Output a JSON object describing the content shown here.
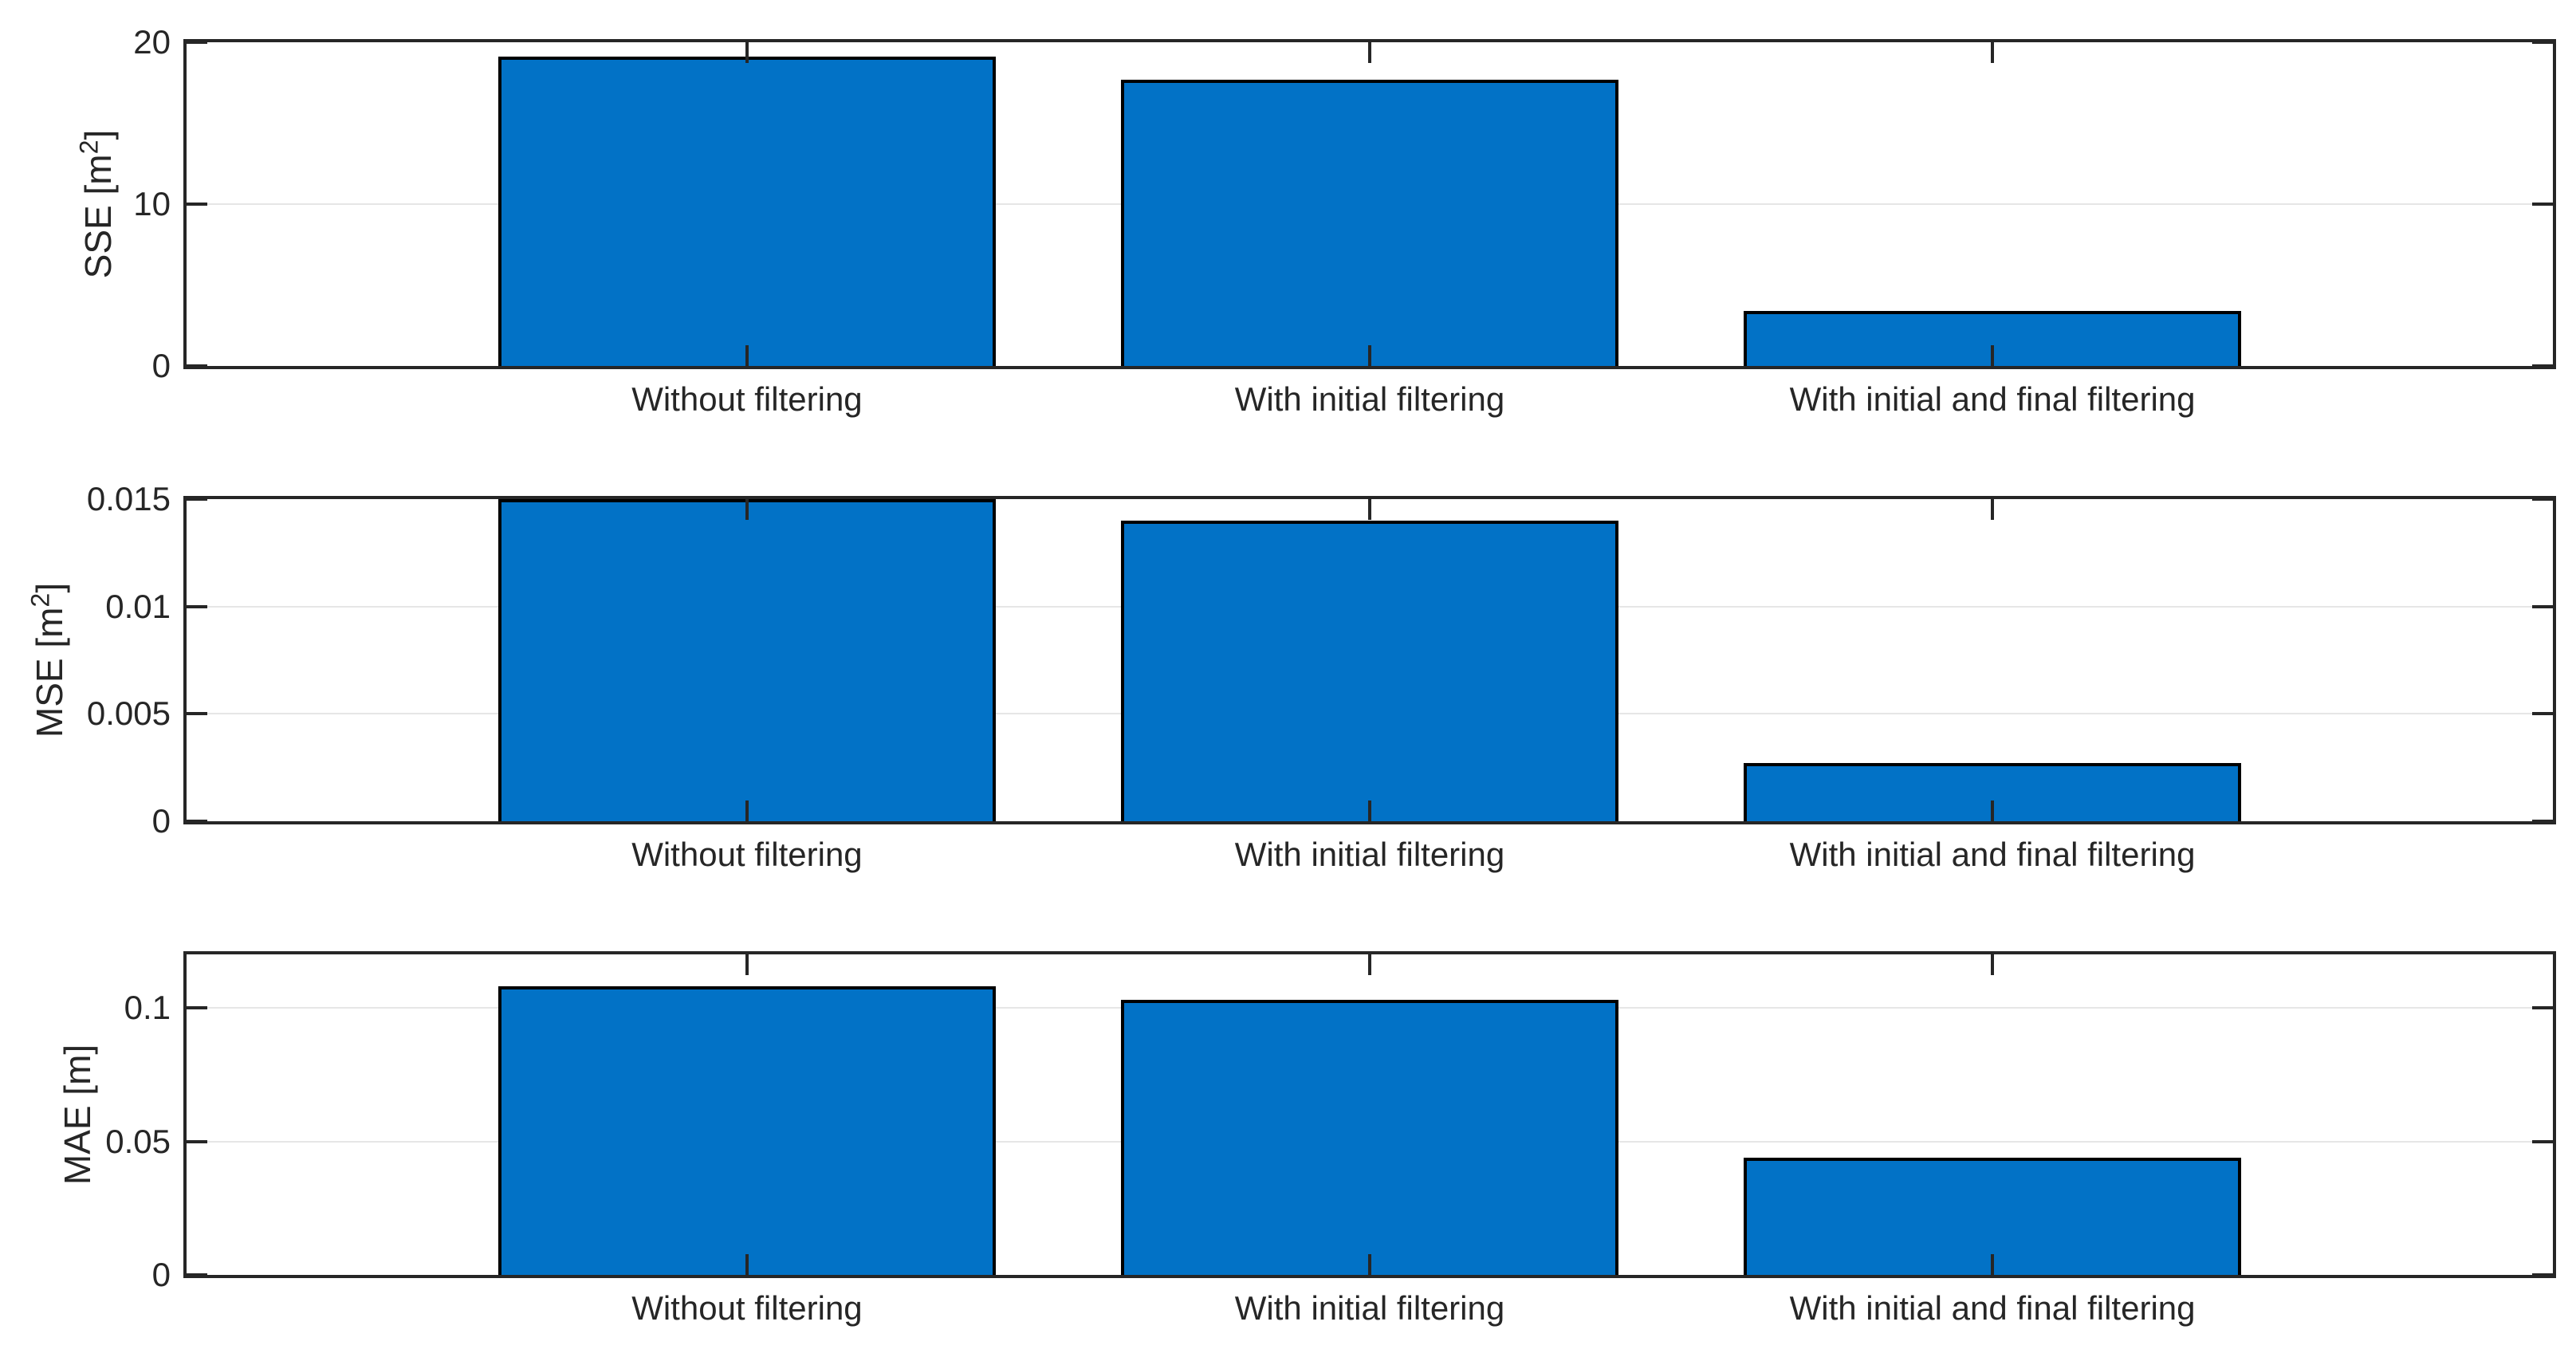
{
  "figure": {
    "background": "#ffffff",
    "axis_color": "#262626",
    "grid_color": "#e6e6e6",
    "bar_color": "#0272c6",
    "bar_edge_color": "#000000"
  },
  "chart_data": [
    {
      "type": "bar",
      "title": "",
      "xlabel": "",
      "ylabel_base": "SSE [m",
      "ylabel_sup": "2",
      "ylabel_end": "]",
      "categories": [
        "Without filtering",
        "With initial filtering",
        "With initial and final filtering"
      ],
      "values": [
        19.1,
        17.7,
        3.4
      ],
      "ylim": [
        0,
        20
      ],
      "yticks": [
        {
          "value": 0,
          "label": "0"
        },
        {
          "value": 10,
          "label": "10"
        },
        {
          "value": 20,
          "label": "20"
        }
      ],
      "xlim": [
        0.1,
        3.9
      ],
      "bar_width": 0.8,
      "grid": true,
      "legend": "none"
    },
    {
      "type": "bar",
      "title": "",
      "xlabel": "",
      "ylabel_base": "MSE [m",
      "ylabel_sup": "2",
      "ylabel_end": "]",
      "categories": [
        "Without filtering",
        "With initial filtering",
        "With initial and final filtering"
      ],
      "values": [
        0.015,
        0.014,
        0.0027
      ],
      "ylim": [
        0,
        0.015
      ],
      "yticks": [
        {
          "value": 0,
          "label": "0"
        },
        {
          "value": 0.005,
          "label": "0.005"
        },
        {
          "value": 0.01,
          "label": "0.01"
        },
        {
          "value": 0.015,
          "label": "0.015"
        }
      ],
      "xlim": [
        0.1,
        3.9
      ],
      "bar_width": 0.8,
      "grid": true,
      "legend": "none"
    },
    {
      "type": "bar",
      "title": "",
      "xlabel": "",
      "ylabel_base": "MAE [m",
      "ylabel_sup": "",
      "ylabel_end": "]",
      "categories": [
        "Without filtering",
        "With initial filtering",
        "With initial and final filtering"
      ],
      "values": [
        0.108,
        0.103,
        0.044
      ],
      "ylim": [
        0,
        0.12
      ],
      "yticks": [
        {
          "value": 0,
          "label": "0"
        },
        {
          "value": 0.05,
          "label": "0.05"
        },
        {
          "value": 0.1,
          "label": "0.1"
        }
      ],
      "xlim": [
        0.1,
        3.9
      ],
      "bar_width": 0.8,
      "grid": true,
      "legend": "none"
    }
  ]
}
